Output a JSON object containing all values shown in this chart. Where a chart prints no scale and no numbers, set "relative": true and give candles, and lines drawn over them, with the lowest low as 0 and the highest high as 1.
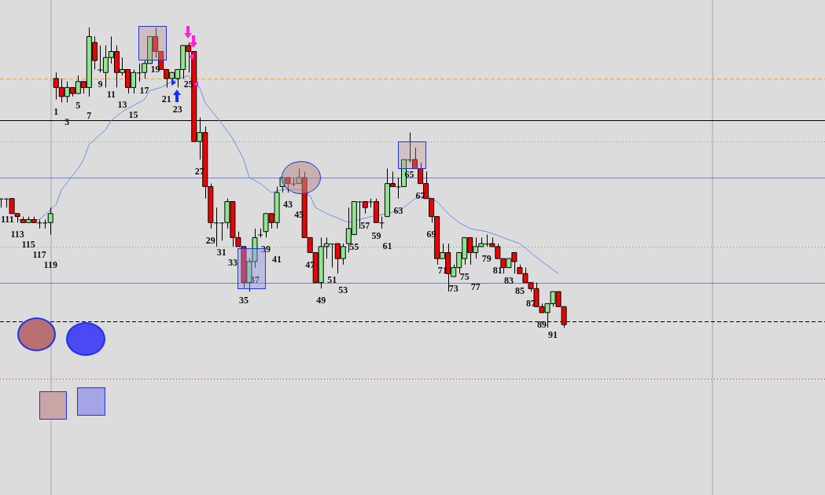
{
  "chart_data": {
    "type": "candlestick",
    "relative": true,
    "legend": false,
    "grid": false,
    "categories": [
      null,
      "111",
      null,
      "113",
      null,
      "115",
      null,
      "117",
      null,
      "119",
      "1",
      null,
      "3",
      null,
      "5",
      null,
      "7",
      null,
      "9",
      null,
      "11",
      null,
      "13",
      null,
      "15",
      null,
      "17",
      null,
      "19",
      null,
      "21",
      null,
      "23",
      null,
      "25",
      null,
      "27",
      null,
      "29",
      null,
      "31",
      null,
      "33",
      null,
      "35",
      null,
      "37",
      null,
      "39",
      null,
      "41",
      null,
      "43",
      null,
      "45",
      null,
      "47",
      null,
      "49",
      null,
      "51",
      null,
      "53",
      null,
      "55",
      null,
      "57",
      null,
      "59",
      null,
      "61",
      null,
      "63",
      null,
      "65",
      null,
      "67",
      null,
      "69",
      null,
      "71",
      null,
      "73",
      null,
      "75",
      null,
      "77",
      null,
      "79",
      null,
      "81",
      null,
      "83",
      null,
      "85",
      null,
      "87",
      null,
      "89",
      null,
      "91",
      null,
      null
    ],
    "ohlc": [
      [
        0.43,
        0.43,
        0.4,
        0.43
      ],
      [
        0.43,
        0.43,
        0.4,
        0.43
      ],
      [
        0.43,
        0.43,
        0.38,
        0.38
      ],
      [
        0.38,
        0.38,
        0.35,
        0.37
      ],
      [
        0.36,
        0.37,
        0.35,
        0.35
      ],
      [
        0.35,
        0.37,
        0.35,
        0.36
      ],
      [
        0.36,
        0.37,
        0.35,
        0.35
      ],
      [
        0.35,
        0.36,
        0.33,
        0.35
      ],
      [
        0.35,
        0.36,
        0.33,
        0.35
      ],
      [
        0.35,
        0.4,
        0.31,
        0.38
      ],
      [
        0.83,
        0.85,
        0.76,
        0.8
      ],
      [
        0.8,
        0.83,
        0.75,
        0.77
      ],
      [
        0.77,
        0.82,
        0.75,
        0.8
      ],
      [
        0.8,
        0.8,
        0.77,
        0.78
      ],
      [
        0.78,
        0.84,
        0.78,
        0.82
      ],
      [
        0.82,
        0.82,
        0.78,
        0.8
      ],
      [
        0.8,
        1.0,
        0.77,
        0.97
      ],
      [
        0.95,
        0.97,
        0.86,
        0.89
      ],
      [
        0.86,
        0.94,
        0.85,
        0.86
      ],
      [
        0.85,
        0.94,
        0.8,
        0.9
      ],
      [
        0.9,
        0.97,
        0.88,
        0.92
      ],
      [
        0.92,
        0.94,
        0.8,
        0.85
      ],
      [
        0.85,
        0.9,
        0.84,
        0.86
      ],
      [
        0.86,
        0.86,
        0.78,
        0.8
      ],
      [
        0.8,
        0.86,
        0.78,
        0.85
      ],
      [
        0.85,
        0.88,
        0.82,
        0.85
      ],
      [
        0.85,
        0.89,
        0.83,
        0.88
      ],
      [
        0.88,
        0.97,
        0.88,
        0.97
      ],
      [
        0.97,
        1.0,
        0.9,
        0.92
      ],
      [
        0.92,
        0.92,
        0.86,
        0.86
      ],
      [
        0.86,
        0.86,
        0.8,
        0.83
      ],
      [
        0.83,
        0.85,
        0.82,
        0.85
      ],
      [
        0.83,
        0.86,
        0.8,
        0.86
      ],
      [
        0.86,
        0.94,
        0.83,
        0.94
      ],
      [
        0.94,
        0.95,
        0.85,
        0.92
      ],
      [
        0.92,
        0.92,
        0.62,
        0.62
      ],
      [
        0.62,
        0.7,
        0.56,
        0.65
      ],
      [
        0.65,
        0.67,
        0.43,
        0.47
      ],
      [
        0.47,
        0.48,
        0.33,
        0.35
      ],
      [
        0.35,
        0.4,
        0.27,
        0.35
      ],
      [
        0.35,
        0.35,
        0.29,
        0.35
      ],
      [
        0.35,
        0.43,
        0.33,
        0.42
      ],
      [
        0.42,
        0.42,
        0.27,
        0.3
      ],
      [
        0.3,
        0.32,
        0.27,
        0.27
      ],
      [
        0.27,
        0.27,
        0.13,
        0.15
      ],
      [
        0.15,
        0.23,
        0.12,
        0.22
      ],
      [
        0.22,
        0.33,
        0.2,
        0.3
      ],
      [
        0.31,
        0.33,
        0.3,
        0.31
      ],
      [
        0.32,
        0.38,
        0.3,
        0.38
      ],
      [
        0.38,
        0.38,
        0.33,
        0.35
      ],
      [
        0.35,
        0.47,
        0.33,
        0.45
      ],
      [
        0.47,
        0.5,
        0.45,
        0.5
      ],
      [
        0.5,
        0.5,
        0.45,
        0.48
      ],
      [
        0.48,
        0.5,
        0.47,
        0.48
      ],
      [
        0.48,
        0.53,
        0.48,
        0.5
      ],
      [
        0.5,
        0.52,
        0.3,
        0.3
      ],
      [
        0.3,
        0.3,
        0.25,
        0.25
      ],
      [
        0.25,
        0.25,
        0.15,
        0.15
      ],
      [
        0.15,
        0.3,
        0.13,
        0.27
      ],
      [
        0.27,
        0.3,
        0.23,
        0.28
      ],
      [
        0.28,
        0.28,
        0.2,
        0.28
      ],
      [
        0.28,
        0.28,
        0.18,
        0.23
      ],
      [
        0.23,
        0.28,
        0.21,
        0.27
      ],
      [
        0.28,
        0.4,
        0.25,
        0.33
      ],
      [
        0.31,
        0.42,
        0.31,
        0.42
      ],
      [
        0.42,
        0.42,
        0.33,
        0.42
      ],
      [
        0.42,
        0.42,
        0.38,
        0.4
      ],
      [
        0.42,
        0.43,
        0.4,
        0.42
      ],
      [
        0.42,
        0.43,
        0.35,
        0.35
      ],
      [
        0.35,
        0.37,
        0.33,
        0.35
      ],
      [
        0.37,
        0.53,
        0.37,
        0.48
      ],
      [
        0.48,
        0.52,
        0.47,
        0.47
      ],
      [
        0.47,
        0.5,
        0.43,
        0.47
      ],
      [
        0.47,
        0.56,
        0.47,
        0.56
      ],
      [
        0.56,
        0.65,
        0.55,
        0.56
      ],
      [
        0.56,
        0.6,
        0.53,
        0.53
      ],
      [
        0.53,
        0.55,
        0.48,
        0.48
      ],
      [
        0.48,
        0.52,
        0.43,
        0.43
      ],
      [
        0.43,
        0.43,
        0.35,
        0.37
      ],
      [
        0.37,
        0.37,
        0.21,
        0.23
      ],
      [
        0.23,
        0.28,
        0.23,
        0.25
      ],
      [
        0.25,
        0.28,
        0.12,
        0.18
      ],
      [
        0.17,
        0.21,
        0.17,
        0.2
      ],
      [
        0.2,
        0.25,
        0.18,
        0.25
      ],
      [
        0.23,
        0.3,
        0.21,
        0.3
      ],
      [
        0.3,
        0.3,
        0.21,
        0.25
      ],
      [
        0.25,
        0.3,
        0.23,
        0.27
      ],
      [
        0.27,
        0.3,
        0.27,
        0.28
      ],
      [
        0.28,
        0.31,
        0.27,
        0.28
      ],
      [
        0.28,
        0.3,
        0.27,
        0.27
      ],
      [
        0.27,
        0.28,
        0.23,
        0.23
      ],
      [
        0.23,
        0.23,
        0.18,
        0.2
      ],
      [
        0.2,
        0.23,
        0.2,
        0.23
      ],
      [
        0.25,
        0.25,
        0.18,
        0.22
      ],
      [
        0.2,
        0.21,
        0.18,
        0.18
      ],
      [
        0.18,
        0.2,
        0.15,
        0.15
      ],
      [
        0.15,
        0.15,
        0.12,
        0.13
      ],
      [
        0.13,
        0.15,
        0.07,
        0.07
      ],
      [
        0.07,
        0.08,
        0.05,
        0.05
      ],
      [
        0.05,
        0.08,
        0.0,
        0.08
      ],
      [
        0.08,
        0.12,
        0.07,
        0.12
      ],
      [
        0.12,
        0.12,
        0.07,
        0.07
      ],
      [
        0.07,
        0.07,
        0.0,
        0.01
      ]
    ],
    "series": [
      {
        "type": "line",
        "color": "#6f8fe6",
        "marker": "none",
        "line_style": "solid",
        "values": [
          null,
          null,
          null,
          0.36,
          null,
          null,
          null,
          0.36,
          null,
          null,
          0.41,
          0.46,
          null,
          null,
          0.53,
          0.56,
          0.61,
          null,
          null,
          0.66,
          0.69,
          null,
          0.72,
          null,
          0.74,
          null,
          0.76,
          0.79,
          null,
          0.8,
          null,
          0.82,
          null,
          null,
          0.84,
          null,
          0.8,
          0.75,
          null,
          null,
          0.68,
          null,
          0.63,
          null,
          0.56,
          0.5,
          null,
          0.48,
          null,
          0.45,
          null,
          0.46,
          null,
          null,
          0.46,
          null,
          0.44,
          0.4,
          null,
          0.38,
          null,
          null,
          null,
          0.35,
          null,
          0.36,
          null,
          0.37,
          null,
          null,
          0.38,
          null,
          0.39,
          0.4,
          null,
          0.43,
          null,
          0.44,
          null,
          0.42,
          null,
          0.38,
          null,
          0.35,
          null,
          0.33,
          null,
          null,
          0.32,
          null,
          null,
          0.3,
          null,
          null,
          0.28,
          null,
          0.25,
          null,
          0.22,
          null,
          null,
          0.18,
          null
        ]
      }
    ],
    "ref_lines": [
      {
        "axis": "y",
        "value": 0.83,
        "color": "#f0a030",
        "line_style": "dashed"
      },
      {
        "axis": "y",
        "value": 0.69,
        "color": "#000000",
        "line_style": "solid"
      },
      {
        "axis": "y",
        "value": 0.62,
        "color": "#33cc33",
        "line_style": "dotted"
      },
      {
        "axis": "y",
        "value": 0.5,
        "color": "#6b7bf0",
        "line_style": "solid"
      },
      {
        "axis": "y",
        "value": 0.27,
        "color": "#33cc33",
        "line_style": "dotted"
      },
      {
        "axis": "y",
        "value": 0.15,
        "color": "#6b7bf0",
        "line_style": "solid"
      },
      {
        "axis": "y",
        "value": 0.02,
        "color": "#000000",
        "line_style": "dashed"
      },
      {
        "axis": "y",
        "value": -0.17,
        "color": "#cc2040",
        "line_style": "dotted"
      }
    ]
  }
}
